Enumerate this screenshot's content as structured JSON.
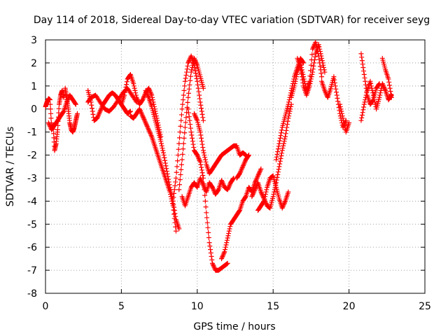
{
  "chart_data": {
    "type": "scatter",
    "title": "Day 114 of 2018, Sidereal Day-to-day VTEC variation (SDTVAR) for receiver seyg",
    "xlabel": "GPS time / hours",
    "ylabel": "SDTVAR / TECUs",
    "xlim": [
      0,
      25
    ],
    "ylim": [
      -8,
      3
    ],
    "xticks": [
      "0",
      "5",
      "10",
      "15",
      "20",
      "25"
    ],
    "yticks": [
      "3",
      "2",
      "1",
      "0",
      "-1",
      "-2",
      "-3",
      "-4",
      "-5",
      "-6",
      "-7",
      "-8"
    ],
    "grid": true,
    "marker": "+",
    "color": "#ff0000",
    "series": [
      {
        "x": [
          0.0,
          0.1,
          0.2,
          0.3,
          0.4,
          0.5,
          0.6,
          0.7,
          0.8,
          0.9,
          1.0,
          1.1,
          1.2
        ],
        "y": [
          0.1,
          0.3,
          0.45,
          0.4,
          -0.8,
          -0.7,
          -1.8,
          -1.5,
          -0.9,
          0.2,
          0.6,
          0.8,
          0.5
        ]
      },
      {
        "x": [
          0.2,
          0.4,
          0.6,
          0.8,
          1.0,
          1.2,
          1.4,
          1.6,
          1.8,
          2.0
        ],
        "y": [
          -0.6,
          -0.9,
          -0.7,
          -0.5,
          -0.3,
          -0.1,
          0.3,
          0.6,
          0.4,
          0.2
        ]
      },
      {
        "x": [
          1.3,
          1.4,
          1.5,
          1.6,
          1.7,
          1.8,
          1.9,
          2.0,
          2.1
        ],
        "y": [
          0.9,
          0.5,
          0.0,
          -0.6,
          -0.9,
          -1.0,
          -0.8,
          -0.5,
          -0.2
        ]
      },
      {
        "x": [
          2.8,
          3.0,
          3.2,
          3.4,
          3.6,
          3.8,
          4.0,
          4.2,
          4.4,
          4.6,
          4.8,
          5.0,
          5.2,
          5.4,
          5.6
        ],
        "y": [
          0.8,
          0.3,
          -0.5,
          -0.4,
          -0.1,
          0.2,
          0.4,
          0.6,
          0.7,
          0.6,
          0.4,
          0.2,
          0.0,
          -0.2,
          -0.1
        ]
      },
      {
        "x": [
          2.8,
          3.0,
          3.3,
          3.6,
          3.9,
          4.2,
          4.5,
          4.8,
          5.1,
          5.4,
          5.7,
          6.0
        ],
        "y": [
          0.3,
          0.5,
          0.6,
          0.3,
          0.0,
          -0.1,
          0.1,
          0.4,
          0.7,
          0.9,
          0.6,
          0.3
        ]
      },
      {
        "x": [
          5.0,
          5.2,
          5.4,
          5.6,
          5.8,
          6.0,
          6.2,
          6.4,
          6.6,
          6.8,
          7.0,
          7.2,
          7.4,
          7.6
        ],
        "y": [
          0.2,
          0.6,
          1.3,
          1.5,
          1.1,
          0.5,
          0.2,
          0.4,
          0.7,
          0.9,
          0.6,
          0.0,
          -0.6,
          -1.2
        ]
      },
      {
        "x": [
          5.6,
          5.8,
          6.0,
          6.2,
          6.4,
          6.6,
          6.8,
          7.0,
          7.2,
          7.4,
          7.6,
          7.8,
          8.0,
          8.2,
          8.4,
          8.6
        ],
        "y": [
          -0.3,
          -0.4,
          -0.2,
          0.0,
          -0.3,
          -0.6,
          -0.9,
          -1.2,
          -1.6,
          -2.0,
          -2.4,
          -2.8,
          -3.2,
          -3.6,
          -4.2,
          -5.3
        ]
      },
      {
        "x": [
          6.6,
          6.8,
          7.0,
          7.2,
          7.4,
          7.6,
          7.8,
          8.0,
          8.2,
          8.4,
          8.6,
          8.8
        ],
        "y": [
          0.8,
          0.5,
          0.1,
          -0.4,
          -0.9,
          -1.4,
          -2.0,
          -2.7,
          -3.4,
          -4.0,
          -4.8,
          -5.2
        ]
      },
      {
        "x": [
          8.4,
          8.6,
          8.8,
          9.0,
          9.2,
          9.4,
          9.6,
          9.8,
          10.0,
          10.2,
          10.4
        ],
        "y": [
          -4.0,
          -3.0,
          -1.5,
          0.0,
          1.2,
          2.0,
          2.3,
          1.9,
          1.2,
          0.3,
          -0.5
        ]
      },
      {
        "x": [
          8.8,
          9.0,
          9.2,
          9.4,
          9.6,
          9.8,
          10.0,
          10.2,
          10.4
        ],
        "y": [
          -3.5,
          -2.2,
          -0.8,
          0.5,
          1.6,
          2.2,
          1.9,
          1.4,
          0.9
        ]
      },
      {
        "x": [
          9.0,
          9.2,
          9.4,
          9.6,
          9.8,
          10.0,
          10.2,
          10.4,
          10.6,
          10.8,
          11.0,
          11.2,
          11.4,
          11.6,
          11.8,
          12.0,
          12.2,
          12.4
        ],
        "y": [
          -3.8,
          -4.2,
          -3.8,
          -3.4,
          -3.2,
          -3.4,
          -3.0,
          -3.3,
          -3.6,
          -3.2,
          -3.4,
          -3.7,
          -3.5,
          -3.1,
          -3.4,
          -3.5,
          -3.2,
          -3.0
        ]
      },
      {
        "x": [
          9.4,
          9.6,
          9.8,
          10.0,
          10.2,
          10.4,
          10.6,
          10.8,
          11.0,
          11.2,
          11.4,
          11.6,
          11.8,
          12.0
        ],
        "y": [
          0.0,
          -1.0,
          -1.8,
          -2.0,
          -2.3,
          -3.0,
          -4.5,
          -5.8,
          -6.7,
          -7.0,
          -7.0,
          -6.9,
          -6.8,
          -6.7
        ]
      },
      {
        "x": [
          9.8,
          10.0,
          10.2,
          10.4,
          10.6,
          10.8,
          11.0,
          11.2,
          11.4,
          11.6,
          11.8,
          12.0,
          12.2,
          12.4,
          12.6,
          12.8,
          13.0,
          13.2
        ],
        "y": [
          -0.2,
          -0.5,
          -1.0,
          -1.8,
          -2.4,
          -2.8,
          -2.6,
          -2.4,
          -2.2,
          -2.0,
          -1.9,
          -1.8,
          -1.7,
          -1.6,
          -1.6,
          -2.0,
          -1.9,
          -2.0
        ]
      },
      {
        "x": [
          11.6,
          11.8,
          12.0,
          12.2,
          12.4,
          12.6,
          12.8,
          13.0,
          13.2,
          13.4,
          13.6,
          13.8,
          14.0,
          14.2
        ],
        "y": [
          -6.5,
          -6.2,
          -5.6,
          -5.0,
          -4.8,
          -4.6,
          -4.4,
          -4.0,
          -3.8,
          -3.4,
          -3.6,
          -3.2,
          -2.9,
          -2.6
        ]
      },
      {
        "x": [
          12.6,
          12.8,
          13.0,
          13.2,
          13.4
        ],
        "y": [
          -3.0,
          -2.8,
          -2.5,
          -2.2,
          -2.0
        ]
      },
      {
        "x": [
          13.6,
          13.8,
          14.0,
          14.2,
          14.4,
          14.6,
          14.8,
          15.0,
          15.2,
          15.4,
          15.6,
          15.8,
          16.0,
          16.2
        ],
        "y": [
          -3.8,
          -3.5,
          -3.2,
          -3.6,
          -3.9,
          -4.2,
          -4.3,
          -3.8,
          -3.2,
          -2.5,
          -1.8,
          -1.2,
          -0.4,
          0.2
        ]
      },
      {
        "x": [
          14.0,
          14.2,
          14.4,
          14.6,
          14.8,
          15.0,
          15.2,
          15.4,
          15.6,
          15.8,
          16.0
        ],
        "y": [
          -4.4,
          -4.2,
          -4.0,
          -3.4,
          -3.0,
          -2.9,
          -3.4,
          -3.9,
          -4.3,
          -4.0,
          -3.6
        ]
      },
      {
        "x": [
          15.2,
          15.4,
          15.6,
          15.8,
          16.0,
          16.2,
          16.4,
          16.6,
          16.8,
          17.0
        ],
        "y": [
          -2.2,
          -1.5,
          -0.8,
          -0.3,
          0.2,
          0.8,
          1.4,
          1.8,
          2.2,
          2.0
        ]
      },
      {
        "x": [
          16.2,
          16.4,
          16.6,
          16.8,
          17.0,
          17.2,
          17.4,
          17.6,
          17.8,
          18.0,
          18.2
        ],
        "y": [
          0.5,
          1.0,
          1.6,
          2.0,
          1.4,
          0.8,
          1.2,
          2.6,
          2.9,
          2.3,
          1.4
        ]
      },
      {
        "x": [
          16.6,
          16.8,
          17.0,
          17.2,
          17.4,
          17.6,
          17.8,
          18.0,
          18.2,
          18.4
        ],
        "y": [
          2.2,
          1.8,
          1.0,
          0.6,
          1.0,
          1.6,
          2.4,
          2.8,
          2.2,
          1.6
        ]
      },
      {
        "x": [
          18.2,
          18.4,
          18.6,
          18.8,
          19.0,
          19.2,
          19.4,
          19.6,
          19.8
        ],
        "y": [
          1.2,
          0.8,
          0.5,
          0.9,
          1.4,
          0.6,
          -0.2,
          -0.8,
          -0.5
        ]
      },
      {
        "x": [
          19.4,
          19.6,
          19.8,
          20.0
        ],
        "y": [
          0.2,
          -0.4,
          -1.0,
          -0.6
        ]
      },
      {
        "x": [
          20.8,
          21.0,
          21.2,
          21.4,
          21.6,
          21.8,
          22.0,
          22.2,
          22.4,
          22.6,
          22.8
        ],
        "y": [
          -0.5,
          0.2,
          0.8,
          1.2,
          0.6,
          0.0,
          0.5,
          1.1,
          0.8,
          0.4,
          0.6
        ]
      },
      {
        "x": [
          20.8,
          21.0,
          21.2,
          21.4,
          21.6,
          21.8,
          22.0
        ],
        "y": [
          2.4,
          1.5,
          0.6,
          0.2,
          0.4,
          0.9,
          1.1
        ]
      },
      {
        "x": [
          22.2,
          22.4,
          22.6,
          22.8
        ],
        "y": [
          2.2,
          1.7,
          1.3,
          0.5
        ]
      }
    ]
  }
}
